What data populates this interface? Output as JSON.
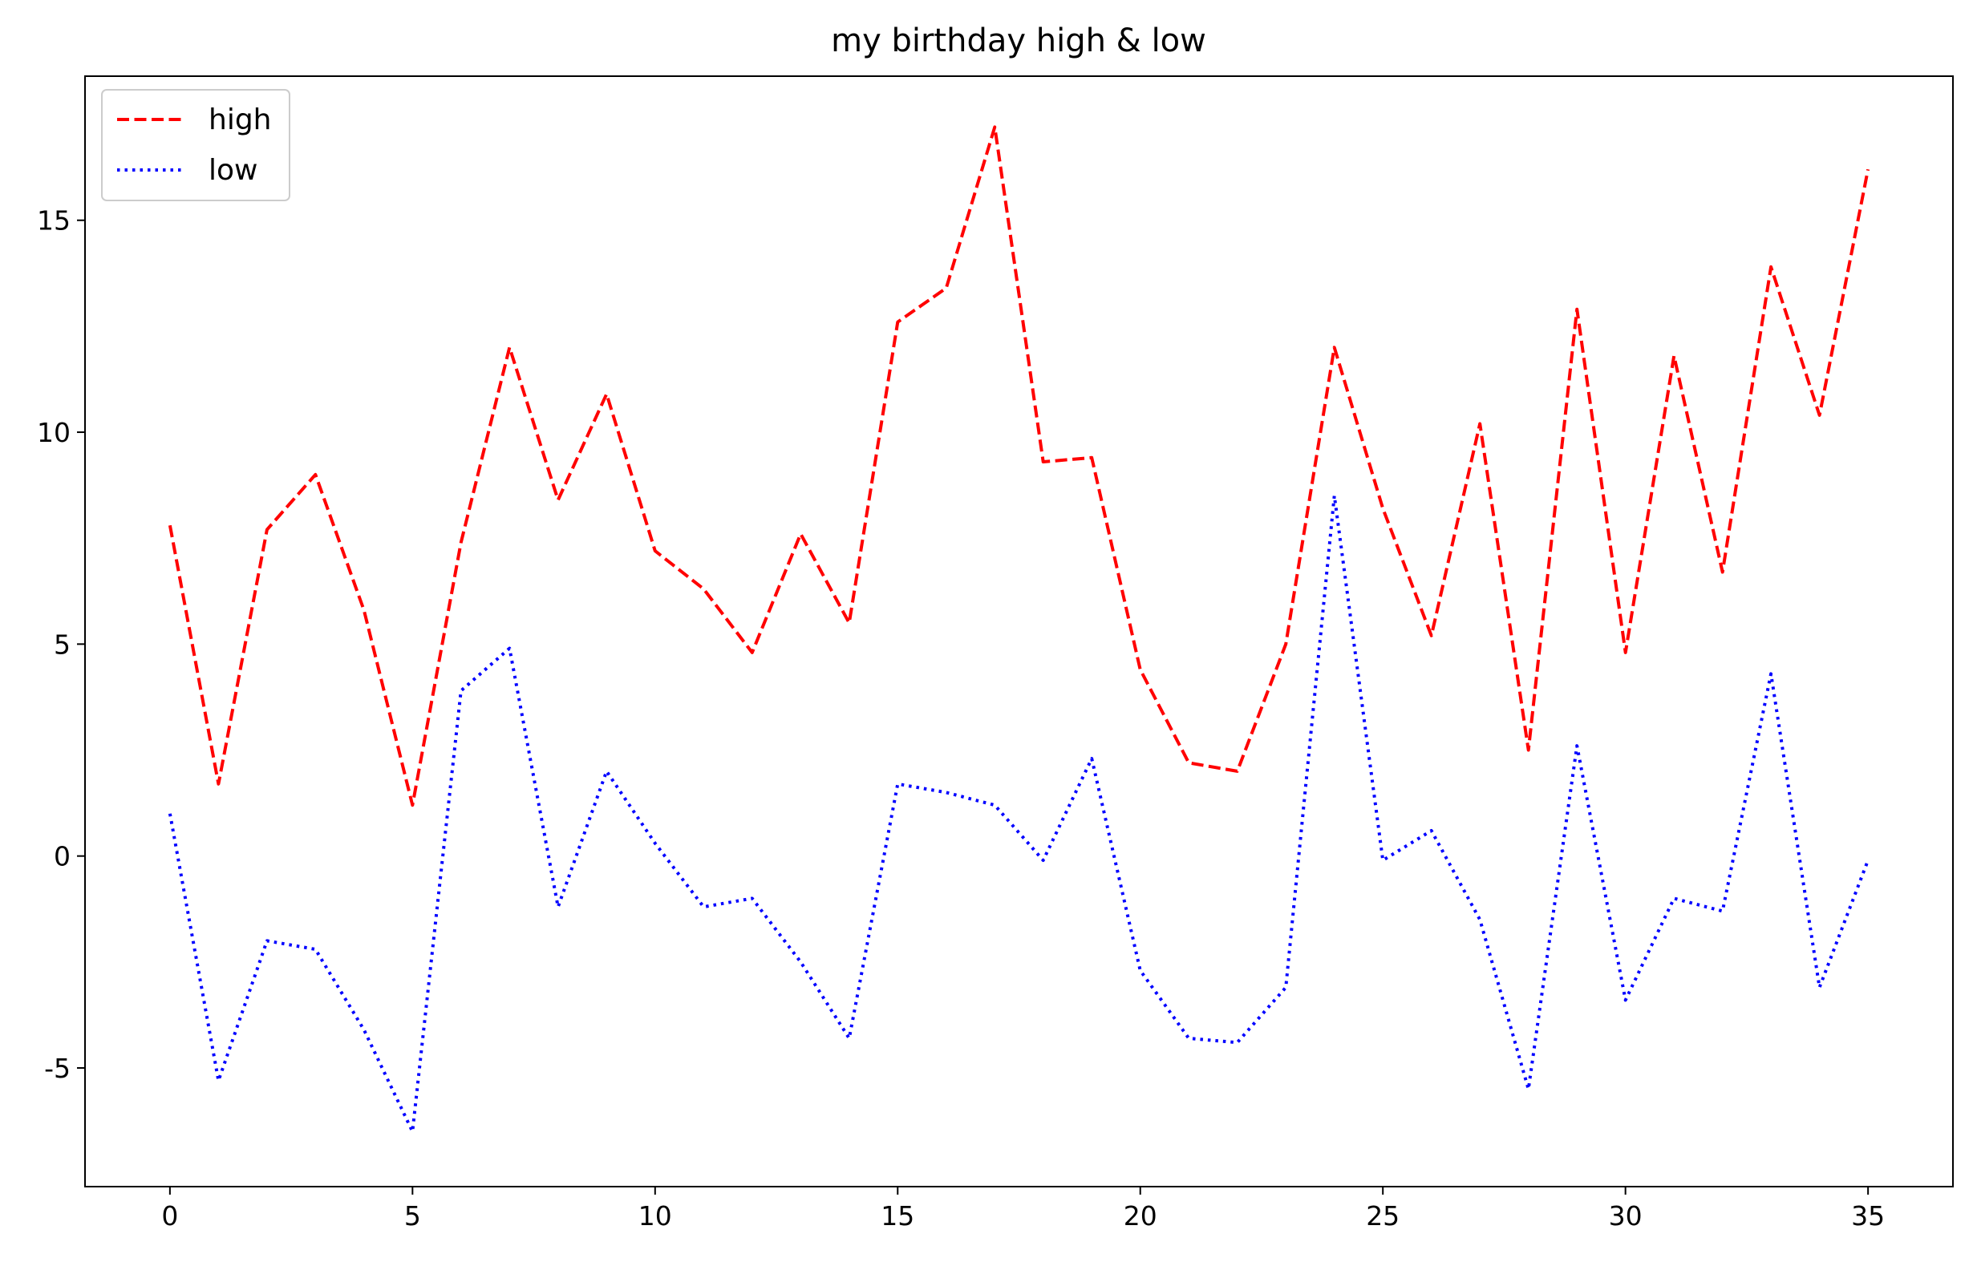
{
  "chart_data": {
    "type": "line",
    "title": "my birthday high & low",
    "xlabel": "",
    "ylabel": "",
    "xlim": [
      -1.75,
      36.75
    ],
    "ylim": [
      -7.8,
      18.4
    ],
    "xticks": [
      0,
      5,
      10,
      15,
      20,
      25,
      30,
      35
    ],
    "yticks": [
      -5,
      0,
      5,
      10,
      15
    ],
    "ytick_labels": [
      "-5",
      "0",
      "5",
      "10",
      "15"
    ],
    "xtick_labels": [
      "0",
      "5",
      "10",
      "15",
      "20",
      "25",
      "30",
      "35"
    ],
    "grid": false,
    "legend_position": "top-left",
    "x": [
      0,
      1,
      2,
      3,
      4,
      5,
      6,
      7,
      8,
      9,
      10,
      11,
      12,
      13,
      14,
      15,
      16,
      17,
      18,
      19,
      20,
      21,
      22,
      23,
      24,
      25,
      26,
      27,
      28,
      29,
      30,
      31,
      32,
      33,
      34,
      35
    ],
    "series": [
      {
        "name": "high",
        "color": "#ff0000",
        "style": "dashed",
        "values": [
          7.8,
          1.7,
          7.7,
          9.0,
          5.8,
          1.2,
          7.4,
          12.0,
          8.4,
          10.9,
          7.2,
          6.3,
          4.8,
          7.6,
          5.5,
          12.6,
          13.4,
          17.2,
          9.3,
          9.4,
          4.4,
          2.2,
          2.0,
          5.0,
          12.0,
          8.2,
          5.2,
          10.2,
          2.5,
          12.9,
          4.8,
          11.8,
          6.7,
          13.9,
          10.4,
          16.2
        ]
      },
      {
        "name": "low",
        "color": "#0000ff",
        "style": "dotted",
        "values": [
          1.0,
          -5.3,
          -2.0,
          -2.2,
          -4.1,
          -6.5,
          3.9,
          4.9,
          -1.2,
          2.0,
          0.3,
          -1.2,
          -1.0,
          -2.5,
          -4.3,
          1.7,
          1.5,
          1.2,
          -0.1,
          2.3,
          -2.7,
          -4.3,
          -4.4,
          -3.1,
          8.5,
          -0.1,
          0.6,
          -1.5,
          -5.5,
          2.6,
          -3.4,
          -1.0,
          -1.3,
          4.3,
          -3.1,
          -0.1
        ]
      }
    ]
  }
}
